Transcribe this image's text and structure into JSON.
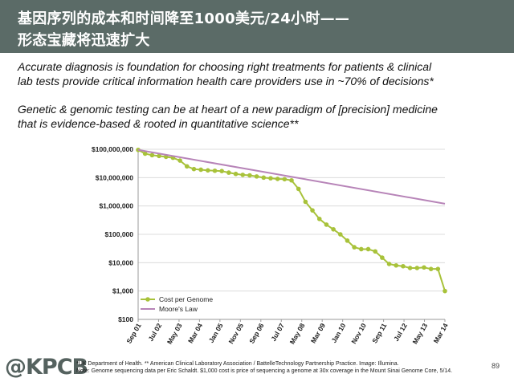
{
  "header": {
    "title_line1": "基因序列的成本和时间降至1000美元/24小时——",
    "title_line2": "形态宝藏将迅速扩大"
  },
  "body_text": {
    "para1_line1": "Accurate diagnosis is foundation for choosing right treatments for patients & clinical",
    "para1_line2": "lab tests provide critical information health care providers use in ~70% of decisions*",
    "para2_line1": "Genetic & genomic testing can be at heart of a new paradigm of [precision] medicine",
    "para2_line2": "that is evidence-based & rooted in quantitative science**"
  },
  "chart_data": {
    "type": "line",
    "scale": "log",
    "ylim": [
      100,
      100000000
    ],
    "y_ticks": [
      100,
      1000,
      10000,
      100000,
      1000000,
      10000000,
      100000000
    ],
    "y_tick_labels": [
      "$100",
      "$1,000",
      "$10,000",
      "$100,000",
      "$1,000,000",
      "$10,000,000",
      "$100,000,000"
    ],
    "x_tick_labels": [
      "Sep 01",
      "Jul 02",
      "May 03",
      "Mar 04",
      "Jan 05",
      "Nov 05",
      "Sep 06",
      "Jul 07",
      "May 08",
      "Mar 09",
      "Jan 10",
      "Nov 10",
      "Sep 11",
      "Jul 12",
      "May 13",
      "Mar 14"
    ],
    "series": [
      {
        "name": "Cost per Genome",
        "color": "#a8c23a",
        "marker": "circle",
        "values": [
          95000000,
          70000000,
          62000000,
          58000000,
          54000000,
          50000000,
          40000000,
          25000000,
          20000000,
          19000000,
          18000000,
          17500000,
          17000000,
          15000000,
          13500000,
          12500000,
          12000000,
          11000000,
          10000000,
          9500000,
          9000000,
          8800000,
          8000000,
          4000000,
          1400000,
          700000,
          350000,
          220000,
          150000,
          100000,
          60000,
          35000,
          30000,
          30000,
          25000,
          15000,
          9000,
          8000,
          7500,
          6500,
          6500,
          6800,
          6000,
          6000,
          1000
        ]
      },
      {
        "name": "Moore's Law",
        "color": "#b784b8",
        "values": [
          95000000,
          1200000
        ]
      }
    ],
    "legend": "bottom-left"
  },
  "footer": {
    "logo": "@KPCB",
    "note1": "*UK Department of Health. ** American Clinical Laboratory Association / BattelleTechnology Partnership Practice. Image: Illumina.",
    "note2": "Note: Genome sequencing data per Eric Schaldt. $1,000 cost is price of sequencing a genome at 30x coverage in the Mount Sinai Genome Core, 5/14.",
    "page_number": "89"
  }
}
